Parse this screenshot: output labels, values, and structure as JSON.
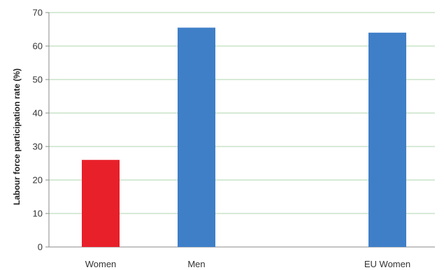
{
  "chart_data": {
    "type": "bar",
    "title": "",
    "xlabel": "",
    "ylabel": "Labour force participation rate (%)",
    "categories": [
      "Women",
      "Men",
      "EU Women"
    ],
    "values": [
      26,
      65.5,
      64
    ],
    "bar_colors": [
      "#e8202a",
      "#3f7fc8",
      "#3f7fc8"
    ],
    "ylim": [
      0,
      70
    ],
    "yticks": [
      0,
      10,
      20,
      30,
      40,
      50,
      60,
      70
    ],
    "grid": true,
    "grid_color": "#c8e3c8",
    "legend": "none"
  }
}
